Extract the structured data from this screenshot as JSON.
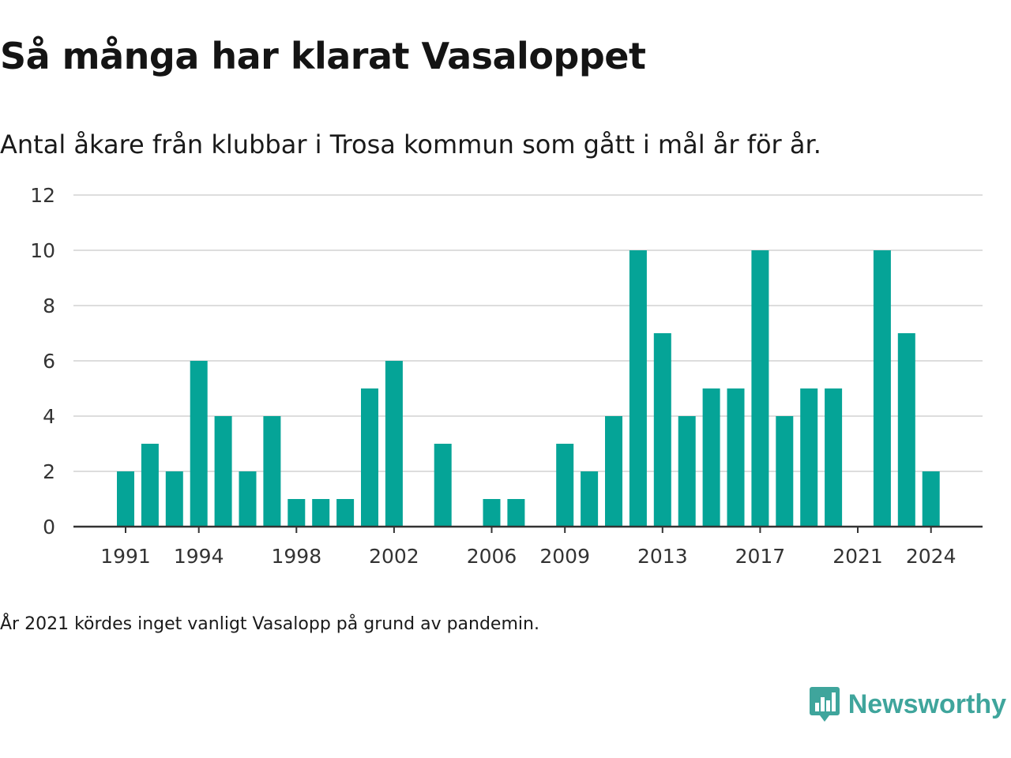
{
  "title": "Så många har klarat Vasaloppet",
  "subtitle": "Antal åkare från klubbar i Trosa kommun som gått i mål år för år.",
  "footnote": "År 2021 kördes inget vanligt Vasalopp på grund av pandemin.",
  "brand": {
    "name": "Newsworthy",
    "logo_icon": "bar-chart-speech-bubble-icon",
    "color": "#3fa59c"
  },
  "chart_data": {
    "type": "bar",
    "title": "Så många har klarat Vasaloppet",
    "subtitle": "Antal åkare från klubbar i Trosa kommun som gått i mål år för år.",
    "xlabel": "",
    "ylabel": "",
    "categories": [
      1991,
      1992,
      1993,
      1994,
      1995,
      1996,
      1997,
      1998,
      1999,
      2000,
      2001,
      2002,
      2003,
      2004,
      2005,
      2006,
      2007,
      2008,
      2009,
      2010,
      2011,
      2012,
      2013,
      2014,
      2015,
      2016,
      2017,
      2018,
      2019,
      2020,
      2021,
      2022,
      2023,
      2024
    ],
    "values": [
      2,
      3,
      2,
      6,
      4,
      2,
      4,
      1,
      1,
      1,
      5,
      6,
      0,
      3,
      0,
      1,
      1,
      0,
      3,
      2,
      4,
      10,
      7,
      4,
      5,
      5,
      10,
      4,
      5,
      5,
      0,
      10,
      7,
      2
    ],
    "x_tick_labels": [
      "1991",
      "1994",
      "1998",
      "2002",
      "2006",
      "2009",
      "2013",
      "2017",
      "2021",
      "2024"
    ],
    "y_ticks": [
      0,
      2,
      4,
      6,
      8,
      10,
      12
    ],
    "ylim": [
      0,
      12
    ],
    "grid": true,
    "bar_color": "#05a497",
    "grid_color": "#dddddd",
    "axis_color": "#333333"
  }
}
